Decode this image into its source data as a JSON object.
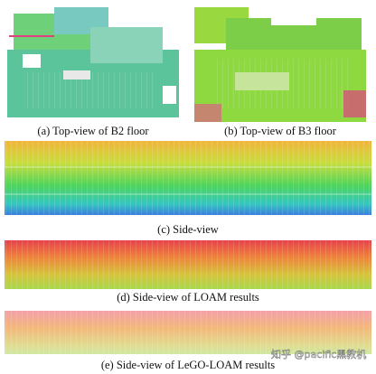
{
  "captions": {
    "a": "(a) Top-view of B2 floor",
    "b": "(b) Top-view of B3 floor",
    "c": "(c) Side-view",
    "d": "(d) Side-view of LOAM results",
    "e": "(e) Side-view of LeGO-LOAM results"
  },
  "watermark": "知乎 @pacific黑教机"
}
